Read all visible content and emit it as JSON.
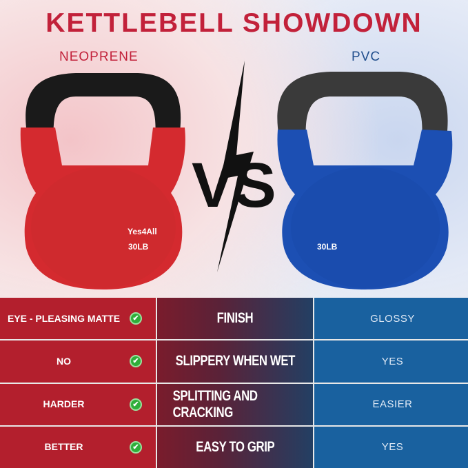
{
  "title": "KETTLEBELL SHOWDOWN",
  "left_label": "NEOPRENE",
  "right_label": "PVC",
  "vs": "VS",
  "left_kettlebell": {
    "brand": "Yes4All",
    "weight": "30LB",
    "color": "#d42a2f"
  },
  "right_kettlebell": {
    "weight": "30LB",
    "color": "#1c4fb3"
  },
  "colors": {
    "neoprene": "#b31f2d",
    "pvc": "#19619f",
    "title": "#c2213a",
    "check": "#2fae3a"
  },
  "rows": [
    {
      "neoprene": "EYE - PLEASING MATTE",
      "feature": "FINISH",
      "pvc": "GLOSSY"
    },
    {
      "neoprene": "NO",
      "feature": "SLIPPERY WHEN WET",
      "pvc": "YES"
    },
    {
      "neoprene": "HARDER",
      "feature": "SPLITTING AND CRACKING",
      "pvc": "EASIER"
    },
    {
      "neoprene": "BETTER",
      "feature": "EASY TO GRIP",
      "pvc": "YES"
    }
  ]
}
